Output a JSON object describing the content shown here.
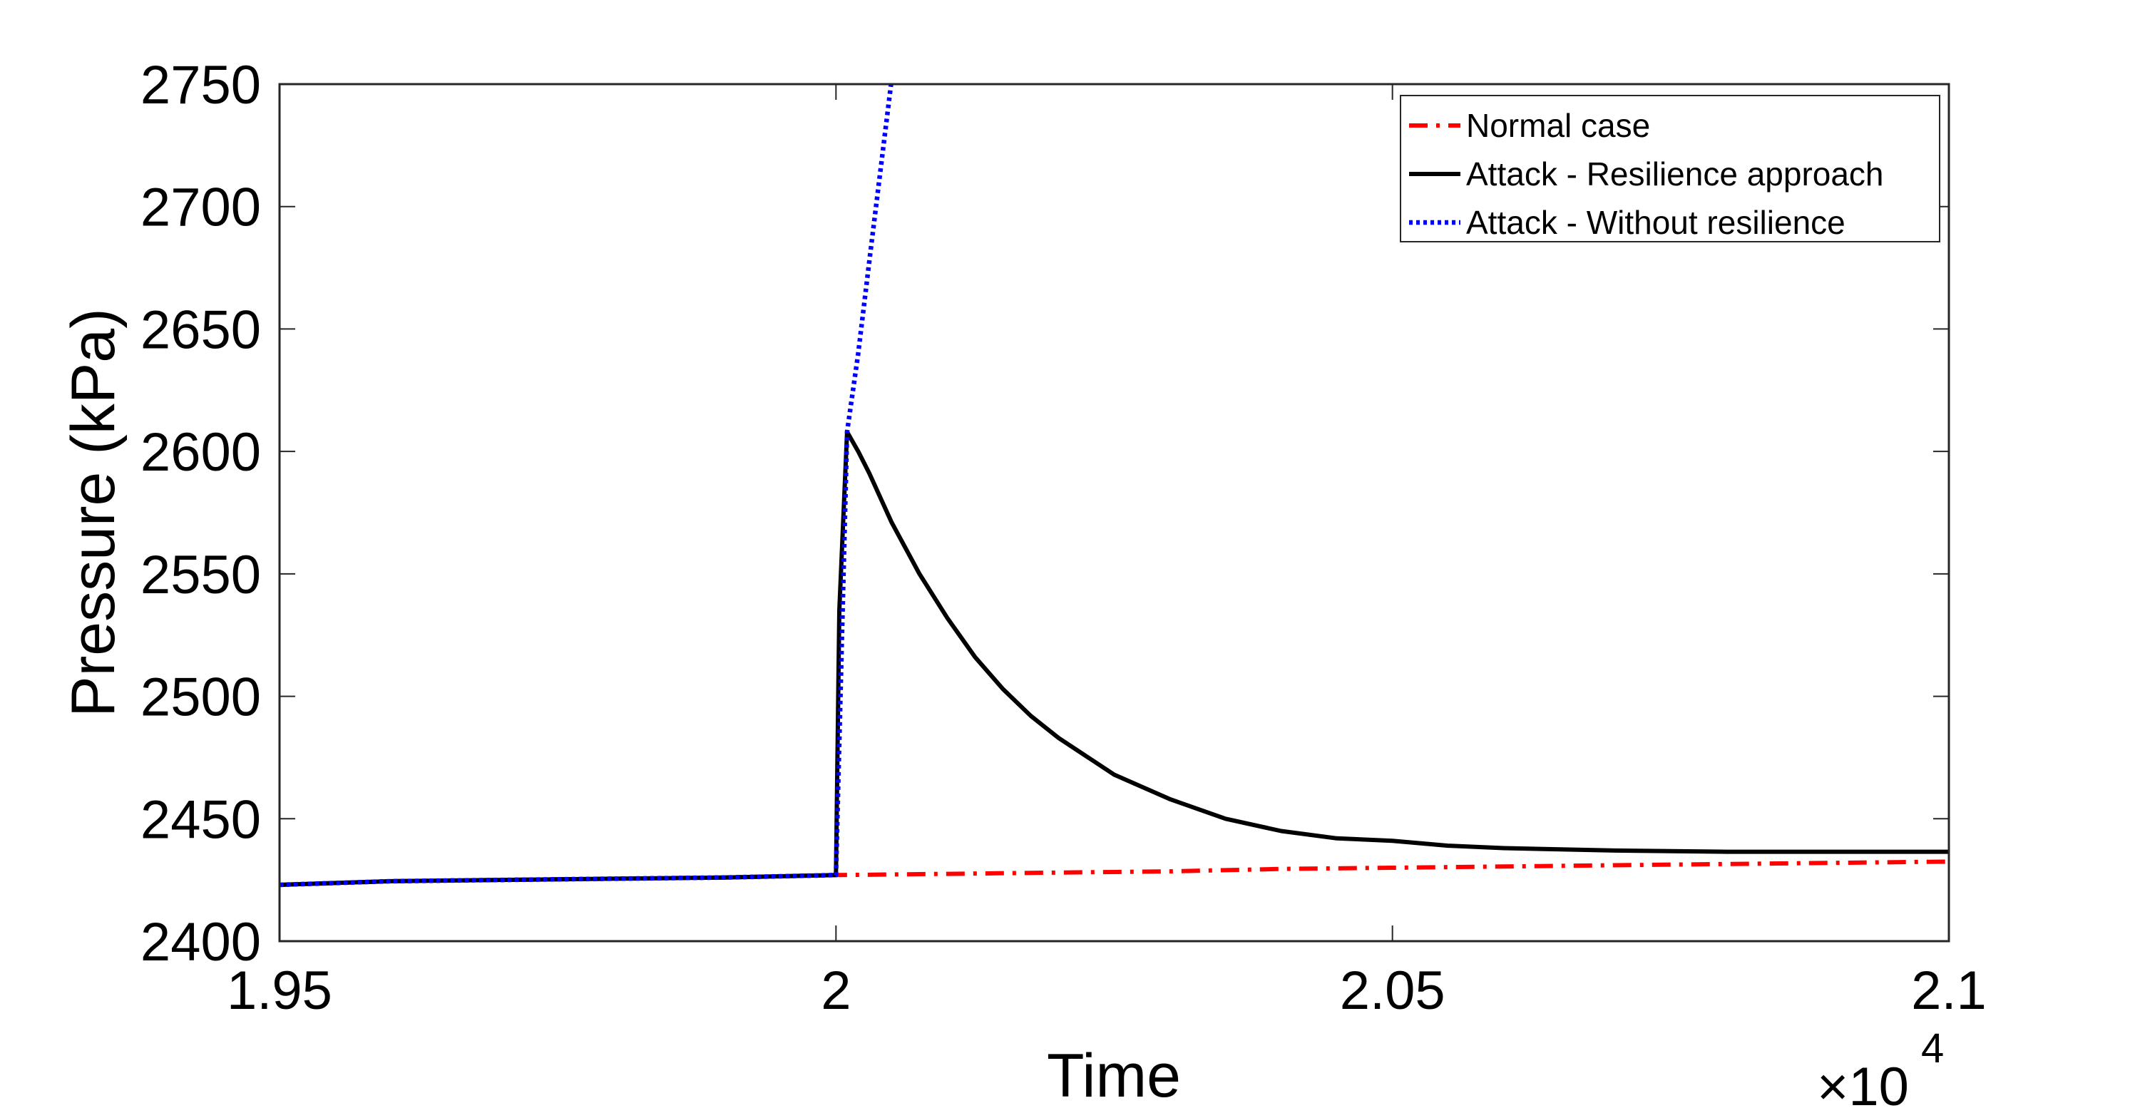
{
  "chart_data": {
    "type": "line",
    "title": "",
    "xlabel": "Time",
    "ylabel": "Pressure (kPa)",
    "x_multiplier_label": "×10",
    "x_multiplier_exponent": "4",
    "xlim": [
      1.95,
      2.1
    ],
    "ylim": [
      2400,
      2750
    ],
    "xticks": [
      1.95,
      2.0,
      2.05,
      2.1
    ],
    "xtick_labels": [
      "1.95",
      "2",
      "2.05",
      "2.1"
    ],
    "yticks": [
      2400,
      2450,
      2500,
      2550,
      2600,
      2650,
      2700,
      2750
    ],
    "ytick_labels": [
      "2400",
      "2450",
      "2500",
      "2550",
      "2600",
      "2650",
      "2700",
      "2750"
    ],
    "grid": false,
    "legend_position": "top-right",
    "series": [
      {
        "name": "Normal case",
        "color": "#ff0000",
        "style": "dashdot",
        "x": [
          1.95,
          1.96,
          1.97,
          1.98,
          1.99,
          2.0,
          2.01,
          2.02,
          2.03,
          2.04,
          2.05,
          2.06,
          2.07,
          2.08,
          2.09,
          2.1
        ],
        "y": [
          2423,
          2424.5,
          2425,
          2425.5,
          2426,
          2427,
          2427.5,
          2428,
          2428.5,
          2429.5,
          2430,
          2430.5,
          2431,
          2431.5,
          2432,
          2432.5
        ]
      },
      {
        "name": "Attack - Resilience approach",
        "color": "#000000",
        "style": "solid",
        "x": [
          1.95,
          1.96,
          1.97,
          1.98,
          1.99,
          2.0,
          2.0003,
          2.001,
          2.002,
          2.003,
          2.005,
          2.0075,
          2.01,
          2.0125,
          2.015,
          2.0175,
          2.02,
          2.025,
          2.03,
          2.035,
          2.04,
          2.045,
          2.05,
          2.055,
          2.06,
          2.07,
          2.08,
          2.09,
          2.1
        ],
        "y": [
          2423,
          2424.5,
          2425,
          2425.5,
          2426,
          2427,
          2535,
          2608,
          2600,
          2591,
          2571,
          2550,
          2532,
          2516,
          2503,
          2492,
          2483,
          2468,
          2458,
          2450,
          2445,
          2442,
          2441,
          2439,
          2438,
          2437,
          2436.5,
          2436.5,
          2436.5
        ]
      },
      {
        "name": "Attack - Without resilience",
        "color": "#0000ff",
        "style": "dotted",
        "x": [
          1.95,
          1.96,
          1.97,
          1.98,
          1.99,
          2.0,
          2.001,
          2.002,
          2.003,
          2.004,
          2.005
        ],
        "y": [
          2423,
          2424.5,
          2425,
          2425.5,
          2426,
          2427,
          2608,
          2640,
          2678,
          2715,
          2752
        ]
      }
    ]
  }
}
